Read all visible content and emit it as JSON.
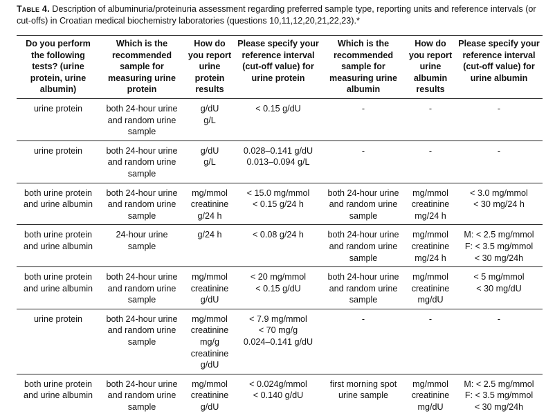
{
  "caption": {
    "label": "Table 4.",
    "text": "Description of albuminuria/proteinuria assessment regarding preferred sample type, reporting units and reference intervals (or cut-offs) in Croatian medical biochemistry laboratories (questions 10,11,12,20,21,22,23).*"
  },
  "table": {
    "headers": [
      "Do you perform the following tests? (urine protein, urine albumin)",
      "Which is the recommended sample for measuring urine protein",
      "How do you report urine protein results",
      "Please specify your reference interval (cut-off value) for urine protein",
      "Which is the recommended sample for measuring urine albumin",
      "How do you report urine albumin results",
      "Please specify your reference interval (cut-off value) for urine albumin"
    ],
    "rows": [
      [
        [
          "urine protein"
        ],
        [
          "both 24-hour urine",
          "and random urine",
          "sample"
        ],
        [
          "g/dU",
          "g/L"
        ],
        [
          "< 0.15 g/dU"
        ],
        [
          "-"
        ],
        [
          "-"
        ],
        [
          "-"
        ]
      ],
      [
        [
          "urine protein"
        ],
        [
          "both 24-hour urine",
          "and random urine",
          "sample"
        ],
        [
          "g/dU",
          "g/L"
        ],
        [
          "0.028–0.141 g/dU",
          "0.013–0.094 g/L"
        ],
        [
          "-"
        ],
        [
          "-"
        ],
        [
          "-"
        ]
      ],
      [
        [
          "both urine protein",
          "and urine albumin"
        ],
        [
          "both 24-hour urine",
          "and random urine",
          "sample"
        ],
        [
          "mg/mmol",
          "creatinine",
          "g/24 h"
        ],
        [
          "< 15.0 mg/mmol",
          "< 0.15 g/24 h"
        ],
        [
          "both 24-hour urine",
          "and random urine",
          "sample"
        ],
        [
          "mg/mmol",
          "creatinine",
          "mg/24 h"
        ],
        [
          "< 3.0 mg/mmol",
          "< 30 mg/24 h"
        ]
      ],
      [
        [
          "both urine protein",
          "and urine albumin"
        ],
        [
          "24-hour urine",
          "sample"
        ],
        [
          "g/24 h"
        ],
        [
          "< 0.08 g/24 h"
        ],
        [
          "both 24-hour urine",
          "and random urine",
          "sample"
        ],
        [
          "mg/mmol",
          "creatinine",
          "mg/24 h"
        ],
        [
          "M: < 2.5 mg/mmol",
          "F: < 3.5 mg/mmol",
          "< 30 mg/24h"
        ]
      ],
      [
        [
          "both urine protein",
          "and urine albumin"
        ],
        [
          "both 24-hour urine",
          "and random urine",
          "sample"
        ],
        [
          "mg/mmol",
          "creatinine",
          "g/dU"
        ],
        [
          "< 20 mg/mmol",
          "< 0.15 g/dU"
        ],
        [
          "both 24-hour urine",
          "and random urine",
          "sample"
        ],
        [
          "mg/mmol",
          "creatinine",
          "mg/dU"
        ],
        [
          "< 5 mg/mmol",
          "< 30 mg/dU"
        ]
      ],
      [
        [
          "urine protein"
        ],
        [
          "both 24-hour urine",
          "and random urine",
          "sample"
        ],
        [
          "mg/mmol",
          "creatinine",
          "mg/g",
          "creatinine",
          "g/dU"
        ],
        [
          "< 7.9 mg/mmol",
          "< 70 mg/g",
          "0.024–0.141 g/dU"
        ],
        [
          "-"
        ],
        [
          "-"
        ],
        [
          "-"
        ]
      ],
      [
        [
          "both urine protein",
          "and urine albumin"
        ],
        [
          "both 24-hour urine",
          "and random urine",
          "sample"
        ],
        [
          "mg/mmol",
          "creatinine",
          "g/dU"
        ],
        [
          "< 0.024g/mmol",
          "< 0.140 g/dU"
        ],
        [
          "first morning spot",
          "urine sample"
        ],
        [
          "mg/mmol",
          "creatinine",
          "mg/dU"
        ],
        [
          "M: < 2.5 mg/mmol",
          "F: < 3.5 mg/mmol",
          "< 30 mg/24h"
        ]
      ]
    ]
  }
}
